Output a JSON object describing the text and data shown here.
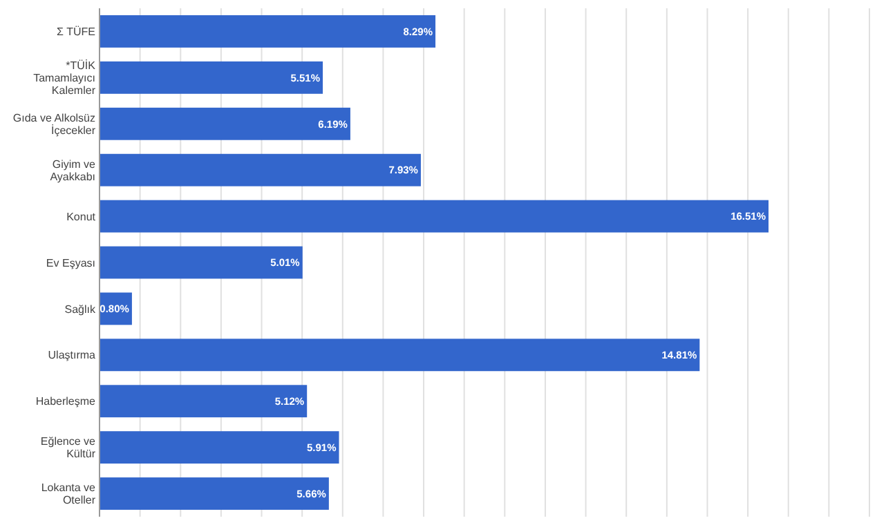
{
  "chart_data": {
    "type": "bar",
    "orientation": "horizontal",
    "categories": [
      "Σ TÜFE",
      "*TÜİK Tamamlayıcı Kalemler",
      "Gıda ve Alkolsüz İçecekler",
      "Giyim ve Ayakkabı",
      "Konut",
      "Ev Eşyası",
      "Sağlık",
      "Ulaştırma",
      "Haberleşme",
      "Eğlence ve Kültür",
      "Lokanta ve Oteller"
    ],
    "values": [
      8.29,
      5.51,
      6.19,
      7.93,
      16.51,
      5.01,
      0.8,
      14.81,
      5.12,
      5.91,
      5.66
    ],
    "value_labels": [
      "8.29%",
      "5.51%",
      "6.19%",
      "7.93%",
      "16.51%",
      "5.01%",
      "0.80%",
      "14.81%",
      "5.12%",
      "5.91%",
      "5.66%"
    ],
    "color": "#3366cc",
    "xlim": [
      0,
      19
    ],
    "xticks": [
      {
        "value": 0,
        "label": null
      },
      {
        "value": 1,
        "label": null
      },
      {
        "value": 2,
        "label": null
      },
      {
        "value": 3,
        "label": null
      },
      {
        "value": 4,
        "label": null
      },
      {
        "value": 5,
        "label": null
      },
      {
        "value": 6,
        "label": null
      },
      {
        "value": 7,
        "label": null
      },
      {
        "value": 8,
        "label": null
      },
      {
        "value": 9,
        "label": null
      },
      {
        "value": 10,
        "label": null
      },
      {
        "value": 11,
        "label": null
      },
      {
        "value": 12,
        "label": null
      },
      {
        "value": 13,
        "label": null
      },
      {
        "value": 14,
        "label": null
      },
      {
        "value": 15,
        "label": null
      },
      {
        "value": 16,
        "label": null
      },
      {
        "value": 17,
        "label": null
      },
      {
        "value": 18,
        "label": null
      },
      {
        "value": 19,
        "label": null
      }
    ],
    "grid": "x",
    "tick_labels": "y"
  }
}
